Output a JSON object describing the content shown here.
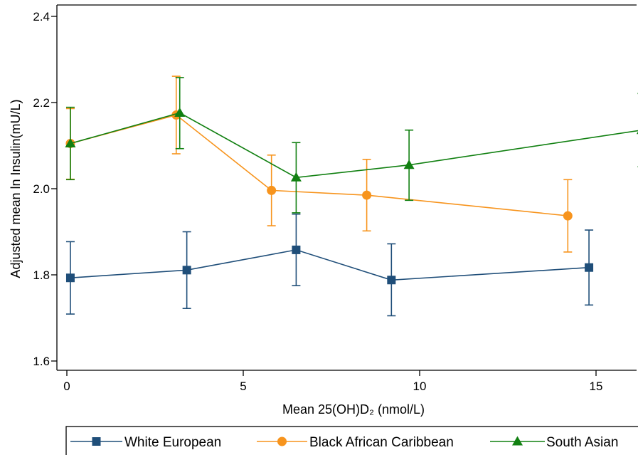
{
  "chart_data": {
    "type": "line",
    "title": "",
    "xlabel": "Mean 25(OH)D₂ (nmol/L)",
    "ylabel": "Adjusted mean ln Insulin(mU/L)",
    "xlim": [
      0,
      16.3
    ],
    "ylim": [
      1.585,
      2.425
    ],
    "xticks": [
      0,
      5,
      10,
      15
    ],
    "yticks": [
      1.6,
      1.8,
      2.0,
      2.2,
      2.4
    ],
    "xtick_labels": [
      "0",
      "5",
      "10",
      "15"
    ],
    "ytick_labels": [
      "1.6",
      "1.8",
      "2.0",
      "2.2",
      "2.4"
    ],
    "grid": false,
    "legend_position": "bottom",
    "series": [
      {
        "name": "White European",
        "color": "#1f4e79",
        "marker": "square",
        "x": [
          0.1,
          3.4,
          6.5,
          9.2,
          14.8
        ],
        "y": [
          1.793,
          1.811,
          1.858,
          1.788,
          1.817
        ],
        "ci_low": [
          1.709,
          1.722,
          1.775,
          1.705,
          1.73
        ],
        "ci_high": [
          1.877,
          1.9,
          1.941,
          1.872,
          1.904
        ]
      },
      {
        "name": "Black African Caribbean",
        "color": "#f7941d",
        "marker": "circle",
        "x": [
          0.1,
          3.1,
          5.8,
          8.5,
          14.2
        ],
        "y": [
          2.105,
          2.171,
          1.996,
          1.985,
          1.937
        ],
        "ci_low": [
          2.022,
          2.081,
          1.914,
          1.902,
          1.853
        ],
        "ci_high": [
          2.186,
          2.261,
          2.078,
          2.068,
          2.021
        ]
      },
      {
        "name": "South Asian",
        "color": "#118011",
        "marker": "triangle",
        "x": [
          0.1,
          3.2,
          6.5,
          9.7,
          16.3
        ],
        "y": [
          2.105,
          2.176,
          2.026,
          2.055,
          2.136
        ],
        "ci_low": [
          2.021,
          2.093,
          1.944,
          1.973,
          2.051
        ],
        "ci_high": [
          2.189,
          2.258,
          2.107,
          2.136,
          2.221
        ]
      }
    ]
  }
}
